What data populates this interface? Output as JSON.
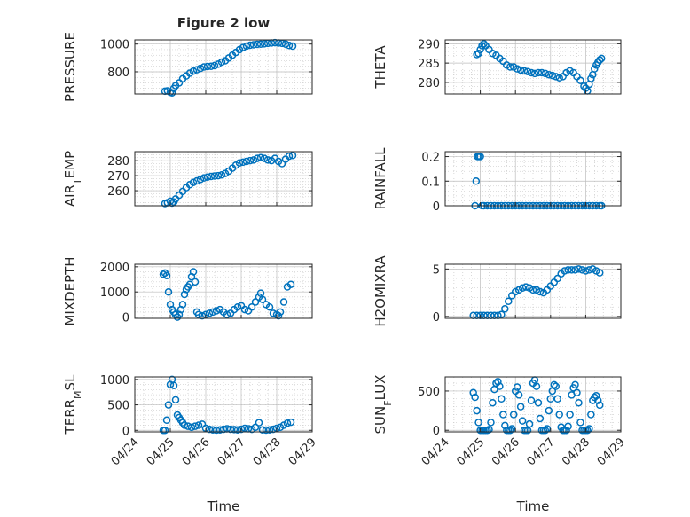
{
  "figure": {
    "title": "Figure 2 low"
  },
  "colors": {
    "marker": "#0072BD",
    "axis": "#262626",
    "grid": "#bdbdbd",
    "background": "#ffffff"
  },
  "chart_data": [
    {
      "type": "scatter",
      "ylabel": "PRESSURE",
      "xlabel": "",
      "xlim": [
        0,
        5
      ],
      "ylim": [
        640,
        1030
      ],
      "yticks": [
        800,
        1000
      ],
      "xticks": [],
      "grid": true,
      "x": [
        0.85,
        0.92,
        1.0,
        1.05,
        1.1,
        1.15,
        1.25,
        1.35,
        1.45,
        1.55,
        1.65,
        1.75,
        1.85,
        1.95,
        2.05,
        2.15,
        2.25,
        2.35,
        2.45,
        2.55,
        2.65,
        2.75,
        2.85,
        2.95,
        3.05,
        3.15,
        3.25,
        3.35,
        3.45,
        3.55,
        3.65,
        3.75,
        3.85,
        3.95,
        4.05,
        4.15,
        4.25,
        4.35,
        4.45
      ],
      "y": [
        660,
        662,
        652,
        648,
        680,
        700,
        720,
        750,
        770,
        790,
        805,
        815,
        825,
        835,
        838,
        840,
        845,
        855,
        870,
        880,
        900,
        920,
        940,
        960,
        975,
        985,
        992,
        995,
        998,
        1000,
        1002,
        1005,
        1008,
        1010,
        1008,
        1005,
        1000,
        990,
        985
      ]
    },
    {
      "type": "scatter",
      "ylabel": "THETA",
      "xlabel": "",
      "xlim": [
        0,
        5
      ],
      "ylim": [
        277,
        291
      ],
      "yticks": [
        280,
        285,
        290
      ],
      "xticks": [],
      "grid": true,
      "x": [
        0.9,
        0.95,
        1.0,
        1.05,
        1.1,
        1.15,
        1.25,
        1.35,
        1.45,
        1.55,
        1.65,
        1.75,
        1.85,
        1.95,
        2.05,
        2.15,
        2.25,
        2.35,
        2.45,
        2.55,
        2.65,
        2.75,
        2.85,
        2.95,
        3.05,
        3.15,
        3.25,
        3.35,
        3.45,
        3.55,
        3.65,
        3.75,
        3.85,
        3.95,
        4.0,
        4.05,
        4.1,
        4.15,
        4.2,
        4.25,
        4.3,
        4.35,
        4.4,
        4.45
      ],
      "y": [
        287.2,
        287.5,
        288.5,
        289.5,
        290.0,
        289.5,
        288.5,
        287.5,
        287.0,
        286.2,
        285.5,
        284.5,
        284.0,
        284.0,
        283.5,
        283.2,
        283.0,
        282.8,
        282.5,
        282.3,
        282.5,
        282.5,
        282.3,
        282.0,
        281.8,
        281.5,
        281.2,
        281.5,
        282.5,
        283.0,
        282.5,
        281.5,
        280.5,
        279.0,
        278.5,
        277.8,
        279.5,
        281.0,
        282.0,
        283.5,
        284.5,
        285.2,
        285.8,
        286.2
      ]
    },
    {
      "type": "scatter",
      "ylabel": "AIR_TEMP",
      "xlabel": "",
      "xlim": [
        0,
        5
      ],
      "ylim": [
        250,
        286
      ],
      "yticks": [
        260,
        270,
        280
      ],
      "xticks": [],
      "grid": true,
      "x": [
        0.85,
        0.92,
        1.0,
        1.05,
        1.1,
        1.15,
        1.25,
        1.35,
        1.45,
        1.55,
        1.65,
        1.75,
        1.85,
        1.95,
        2.05,
        2.15,
        2.25,
        2.35,
        2.45,
        2.55,
        2.65,
        2.75,
        2.85,
        2.95,
        3.05,
        3.15,
        3.25,
        3.35,
        3.45,
        3.55,
        3.65,
        3.75,
        3.85,
        3.95,
        4.05,
        4.15,
        4.25,
        4.35,
        4.45
      ],
      "y": [
        251.5,
        252.0,
        253.0,
        251.8,
        252.5,
        254.5,
        257.0,
        259.5,
        262.0,
        264.0,
        265.5,
        266.5,
        267.5,
        268.5,
        269.0,
        269.5,
        269.8,
        270.0,
        270.5,
        271.5,
        273.0,
        275.0,
        277.0,
        278.5,
        279.0,
        279.5,
        280.0,
        280.5,
        281.5,
        282.0,
        281.5,
        280.5,
        280.0,
        281.5,
        279.5,
        278.0,
        281.0,
        283.0,
        283.5
      ]
    },
    {
      "type": "scatter",
      "ylabel": "RAINFALL",
      "xlabel": "",
      "xlim": [
        0,
        5
      ],
      "ylim": [
        0,
        0.22
      ],
      "yticks": [
        0,
        0.1,
        0.2
      ],
      "xticks": [],
      "grid": true,
      "x": [
        0.85,
        0.88,
        0.92,
        0.96,
        1.0,
        1.05,
        1.1,
        1.2,
        1.3,
        1.4,
        1.5,
        1.6,
        1.7,
        1.8,
        1.9,
        2.0,
        2.1,
        2.2,
        2.3,
        2.4,
        2.5,
        2.6,
        2.7,
        2.8,
        2.9,
        3.0,
        3.1,
        3.2,
        3.3,
        3.4,
        3.5,
        3.6,
        3.7,
        3.8,
        3.9,
        4.0,
        4.1,
        4.2,
        4.3,
        4.4,
        4.45
      ],
      "y": [
        0,
        0.1,
        0.2,
        0.2,
        0.2,
        0,
        0,
        0,
        0,
        0,
        0,
        0,
        0,
        0,
        0,
        0,
        0,
        0,
        0,
        0,
        0,
        0,
        0,
        0,
        0,
        0,
        0,
        0,
        0,
        0,
        0,
        0,
        0,
        0,
        0,
        0,
        0,
        0,
        0,
        0,
        0
      ]
    },
    {
      "type": "scatter",
      "ylabel": "MIXDEPTH",
      "xlabel": "",
      "xlim": [
        0,
        5
      ],
      "ylim": [
        -50,
        2100
      ],
      "yticks": [
        0,
        1000,
        2000
      ],
      "xticks": [],
      "grid": true,
      "x": [
        0.8,
        0.85,
        0.9,
        0.95,
        1.0,
        1.05,
        1.1,
        1.15,
        1.2,
        1.25,
        1.3,
        1.35,
        1.4,
        1.45,
        1.5,
        1.55,
        1.6,
        1.65,
        1.7,
        1.75,
        1.8,
        1.9,
        2.0,
        2.1,
        2.2,
        2.3,
        2.4,
        2.5,
        2.6,
        2.7,
        2.8,
        2.9,
        3.0,
        3.1,
        3.2,
        3.3,
        3.4,
        3.5,
        3.55,
        3.6,
        3.7,
        3.8,
        3.9,
        4.0,
        4.05,
        4.1,
        4.2,
        4.3,
        4.4
      ],
      "y": [
        1700,
        1750,
        1650,
        1000,
        500,
        300,
        200,
        100,
        0,
        100,
        300,
        500,
        900,
        1100,
        1200,
        1300,
        1600,
        1800,
        1400,
        200,
        100,
        50,
        100,
        150,
        200,
        250,
        300,
        200,
        100,
        150,
        300,
        400,
        450,
        300,
        250,
        400,
        600,
        800,
        950,
        700,
        500,
        400,
        150,
        100,
        50,
        200,
        600,
        1200,
        1300
      ]
    },
    {
      "type": "scatter",
      "ylabel": "H2OMIXRA",
      "xlabel": "",
      "xlim": [
        0,
        5
      ],
      "ylim": [
        -0.2,
        5.5
      ],
      "yticks": [
        0,
        5
      ],
      "xticks": [],
      "grid": true,
      "x": [
        0.8,
        0.9,
        1.0,
        1.1,
        1.2,
        1.3,
        1.4,
        1.5,
        1.6,
        1.7,
        1.8,
        1.9,
        2.0,
        2.1,
        2.2,
        2.3,
        2.4,
        2.5,
        2.6,
        2.7,
        2.8,
        2.9,
        3.0,
        3.1,
        3.2,
        3.3,
        3.4,
        3.5,
        3.6,
        3.7,
        3.8,
        3.9,
        4.0,
        4.1,
        4.2,
        4.3,
        4.4
      ],
      "y": [
        0.1,
        0.1,
        0.1,
        0.1,
        0.1,
        0.1,
        0.1,
        0.1,
        0.2,
        0.8,
        1.6,
        2.2,
        2.6,
        2.8,
        3.0,
        3.1,
        3.0,
        2.8,
        2.8,
        2.6,
        2.5,
        2.8,
        3.2,
        3.6,
        4.0,
        4.5,
        4.8,
        4.9,
        4.9,
        4.9,
        5.0,
        4.9,
        4.8,
        4.9,
        5.0,
        4.8,
        4.6
      ]
    },
    {
      "type": "scatter",
      "ylabel": "TERR_MSL",
      "xlabel": "Time",
      "xlim": [
        0,
        5
      ],
      "ylim": [
        -30,
        1050
      ],
      "yticks": [
        0,
        500,
        1000
      ],
      "xticks": [
        "04/24",
        "04/25",
        "04/26",
        "04/27",
        "04/28",
        "04/29"
      ],
      "grid": true,
      "x": [
        0.8,
        0.85,
        0.9,
        0.95,
        1.0,
        1.05,
        1.1,
        1.15,
        1.2,
        1.25,
        1.3,
        1.35,
        1.4,
        1.5,
        1.6,
        1.7,
        1.8,
        1.9,
        2.0,
        2.1,
        2.2,
        2.3,
        2.4,
        2.5,
        2.6,
        2.7,
        2.8,
        2.9,
        3.0,
        3.1,
        3.2,
        3.3,
        3.4,
        3.5,
        3.6,
        3.7,
        3.8,
        3.9,
        4.0,
        4.1,
        4.2,
        4.3,
        4.4
      ],
      "y": [
        0,
        0,
        200,
        500,
        900,
        1000,
        880,
        600,
        300,
        250,
        200,
        150,
        100,
        80,
        60,
        80,
        100,
        120,
        40,
        20,
        10,
        5,
        10,
        20,
        30,
        20,
        15,
        10,
        20,
        40,
        30,
        20,
        60,
        150,
        10,
        5,
        10,
        20,
        40,
        60,
        100,
        140,
        160
      ]
    },
    {
      "type": "scatter",
      "ylabel": "SUN_FLUX",
      "xlabel": "Time",
      "xlim": [
        0,
        5
      ],
      "ylim": [
        -20,
        680
      ],
      "yticks": [
        0,
        500
      ],
      "xticks": [
        "04/24",
        "04/25",
        "04/26",
        "04/27",
        "04/28",
        "04/29"
      ],
      "grid": true,
      "x": [
        0.8,
        0.85,
        0.9,
        0.95,
        1.0,
        1.05,
        1.1,
        1.15,
        1.2,
        1.25,
        1.3,
        1.35,
        1.4,
        1.45,
        1.5,
        1.55,
        1.6,
        1.65,
        1.7,
        1.75,
        1.8,
        1.85,
        1.9,
        1.95,
        2.0,
        2.05,
        2.1,
        2.15,
        2.2,
        2.25,
        2.3,
        2.35,
        2.4,
        2.45,
        2.5,
        2.55,
        2.6,
        2.65,
        2.7,
        2.75,
        2.8,
        2.85,
        2.9,
        2.95,
        3.0,
        3.05,
        3.1,
        3.15,
        3.2,
        3.25,
        3.3,
        3.35,
        3.4,
        3.45,
        3.5,
        3.55,
        3.6,
        3.65,
        3.7,
        3.75,
        3.8,
        3.85,
        3.9,
        3.95,
        4.0,
        4.05,
        4.1,
        4.15,
        4.2,
        4.25,
        4.3,
        4.35,
        4.4
      ],
      "y": [
        480,
        420,
        250,
        100,
        0,
        0,
        0,
        0,
        0,
        10,
        100,
        350,
        520,
        600,
        620,
        560,
        400,
        200,
        60,
        0,
        0,
        0,
        20,
        200,
        500,
        550,
        450,
        300,
        120,
        0,
        0,
        0,
        80,
        380,
        600,
        640,
        560,
        350,
        150,
        0,
        0,
        0,
        20,
        250,
        400,
        500,
        580,
        560,
        400,
        200,
        40,
        0,
        0,
        0,
        50,
        200,
        450,
        540,
        580,
        480,
        350,
        100,
        0,
        0,
        0,
        0,
        20,
        200,
        380,
        420,
        440,
        380,
        320
      ]
    }
  ]
}
